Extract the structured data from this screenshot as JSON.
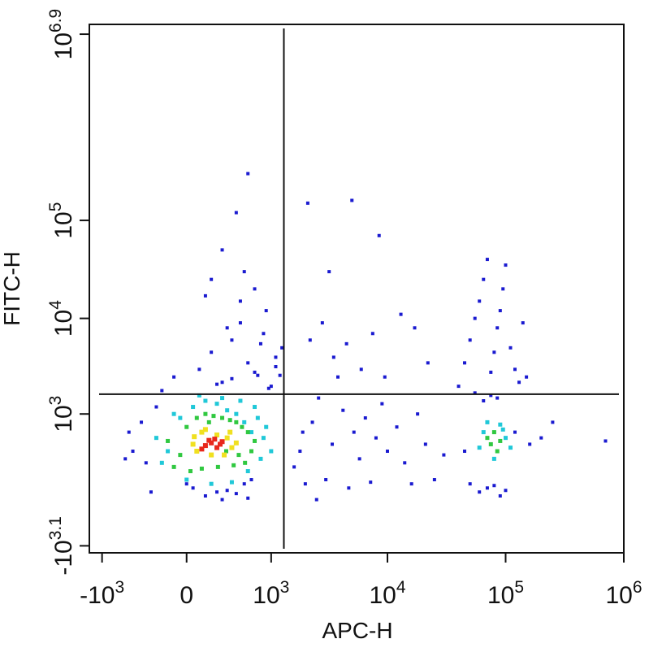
{
  "chart_data": {
    "type": "scatter",
    "x_label": "APC-H",
    "y_label": "FITC-H",
    "scale": "asinh",
    "x_cofactor": 400,
    "y_cofactor": 500,
    "xlim": [
      -1300,
      1000000
    ],
    "ylim": [
      -1500,
      10000000
    ],
    "xticks": [
      {
        "value": -1000,
        "label": "-10^3"
      },
      0,
      {
        "value": 1000,
        "label": "10^3"
      },
      {
        "value": 10000,
        "label": "10^4"
      },
      {
        "value": 100000,
        "label": "10^5"
      },
      {
        "value": 1000000,
        "label": "10^6"
      }
    ],
    "yticks": [
      {
        "value": -1259,
        "label": "-10^3.1"
      },
      {
        "value": 1000,
        "label": "10^3"
      },
      {
        "value": 10000,
        "label": "10^4"
      },
      {
        "value": 100000,
        "label": "10^5"
      },
      {
        "value": 7943282,
        "label": "10^6.9"
      }
    ],
    "gate_x": 1300,
    "gate_y": 1650,
    "series": [
      {
        "color": "#1a1ad0",
        "x": [
          -500,
          -400,
          -300,
          -200,
          -100,
          0,
          100,
          200,
          300,
          400,
          500,
          600,
          700,
          800,
          900,
          1000,
          1100,
          -350,
          -250,
          50,
          150,
          250,
          350,
          450,
          550,
          650,
          750,
          850,
          950,
          150,
          300,
          450,
          600,
          200,
          500,
          350,
          700,
          250,
          400,
          550,
          1600,
          1800,
          2000,
          2300,
          2600,
          3000,
          3400,
          3800,
          4200,
          4700,
          5200,
          5800,
          6500,
          7200,
          8000,
          9000,
          10000,
          12000,
          14000,
          16000,
          18000,
          21000,
          25000,
          30000,
          2200,
          2800,
          3500,
          4500,
          6000,
          7500,
          9500,
          13000,
          17000,
          22000,
          2100,
          3200,
          5000,
          8500,
          1900,
          2500,
          40000,
          45000,
          50000,
          55000,
          60000,
          65000,
          70000,
          75000,
          80000,
          85000,
          90000,
          95000,
          100000,
          110000,
          120000,
          130000,
          140000,
          150000,
          50000,
          60000,
          70000,
          80000,
          90000,
          100000,
          65000,
          75000,
          85000,
          55000,
          45000,
          120000,
          160000,
          200000,
          250000,
          700000,
          -600,
          -550,
          1200,
          1250,
          1100,
          300,
          600
        ],
        "values": [
          300,
          800,
          -200,
          1800,
          2500,
          -100,
          3000,
          4500,
          2200,
          6000,
          9000,
          3500,
          2800,
          5500,
          12000,
          2000,
          4000,
          150,
          1200,
          -150,
          -250,
          -200,
          -180,
          -220,
          -100,
          -50,
          2600,
          7000,
          1900,
          17000,
          50000,
          120000,
          300000,
          25000,
          15000,
          8000,
          20000,
          2100,
          2400,
          30000,
          100,
          300,
          -100,
          800,
          1500,
          -50,
          400,
          2500,
          1100,
          -150,
          600,
          200,
          900,
          -80,
          500,
          1300,
          300,
          700,
          150,
          -100,
          1000,
          400,
          -50,
          250,
          6000,
          9000,
          4000,
          5500,
          3000,
          7000,
          2500,
          11000,
          8000,
          3500,
          150000,
          30000,
          160000,
          70000,
          600,
          -300,
          2000,
          3500,
          6000,
          10000,
          15000,
          25000,
          40000,
          2800,
          4500,
          8000,
          12000,
          20000,
          35000,
          5000,
          3000,
          2200,
          9000,
          2500,
          -100,
          -200,
          -150,
          -120,
          -250,
          -180,
          1400,
          1600,
          1500,
          1700,
          300,
          600,
          400,
          500,
          800,
          450,
          200,
          600,
          2600,
          5000,
          3200,
          -300,
          -280
        ],
        "size": 4
      },
      {
        "color": "#20c8d8",
        "x": [
          -250,
          -150,
          -50,
          50,
          150,
          250,
          350,
          450,
          550,
          650,
          750,
          850,
          -200,
          0,
          200,
          400,
          600,
          800,
          100,
          300,
          500,
          700,
          900,
          -100,
          1000,
          60000,
          100000,
          80000,
          95000,
          65000,
          110000,
          70000,
          90000
        ],
        "values": [
          500,
          300,
          900,
          1200,
          1400,
          1300,
          1100,
          1000,
          800,
          600,
          900,
          500,
          150,
          -50,
          -100,
          -80,
          50,
          200,
          1600,
          1500,
          1400,
          1200,
          700,
          1000,
          300,
          350,
          500,
          200,
          650,
          600,
          350,
          800,
          750
        ],
        "size": 5
      },
      {
        "color": "#30c840",
        "x": [
          -150,
          -50,
          0,
          80,
          150,
          220,
          300,
          380,
          450,
          520,
          600,
          700,
          -100,
          30,
          120,
          260,
          420,
          560,
          650,
          180,
          340,
          480,
          75000,
          85000,
          70000,
          90000,
          80000
        ],
        "values": [
          450,
          250,
          700,
          900,
          1000,
          950,
          900,
          850,
          800,
          700,
          600,
          450,
          100,
          50,
          80,
          100,
          120,
          150,
          300,
          800,
          300,
          250,
          400,
          300,
          500,
          450,
          600
        ],
        "size": 5
      },
      {
        "color": "#f0e020",
        "x": [
          50,
          80,
          350,
          400,
          120,
          250,
          320,
          60,
          450,
          200,
          150,
          380
        ],
        "values": [
          400,
          300,
          500,
          350,
          600,
          550,
          250,
          520,
          420,
          250,
          650,
          600
        ],
        "size": 6
      },
      {
        "color": "#e8281c",
        "x": [
          150,
          200,
          250,
          180,
          280,
          120,
          230,
          300
        ],
        "values": [
          380,
          420,
          350,
          460,
          400,
          330,
          480,
          440
        ],
        "size": 6
      }
    ]
  }
}
